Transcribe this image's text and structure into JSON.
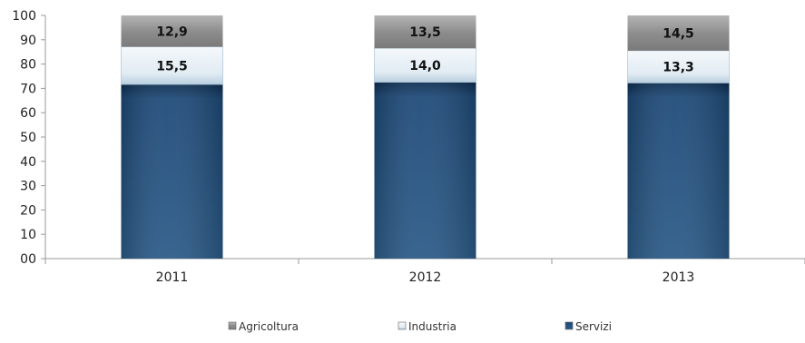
{
  "chart_data": {
    "type": "bar",
    "stacked": true,
    "categories": [
      "2011",
      "2012",
      "2013"
    ],
    "series": [
      {
        "name": "Servizi",
        "values": [
          71.6,
          72.5,
          72.2
        ],
        "color": "#1f4e79"
      },
      {
        "name": "Industria",
        "values": [
          15.5,
          14.0,
          13.3
        ],
        "color": "#dfeaf2"
      },
      {
        "name": "Agricoltura",
        "values": [
          12.9,
          13.5,
          14.5
        ],
        "color": "#8c8c8c"
      }
    ],
    "data_labels": [
      {
        "series": "Industria",
        "labels": [
          "15,5",
          "14,0",
          "13,3"
        ]
      },
      {
        "series": "Agricoltura",
        "labels": [
          "12,9",
          "13,5",
          "14,5"
        ]
      }
    ],
    "yticks": [
      "00",
      "10",
      "20",
      "30",
      "40",
      "50",
      "60",
      "70",
      "80",
      "90",
      "100"
    ],
    "ylim": [
      0,
      100
    ],
    "grid": false,
    "legend_position": "bottom",
    "legend_order": [
      "Agricoltura",
      "Industria",
      "Servizi"
    ],
    "title": "",
    "xlabel": "",
    "ylabel": ""
  }
}
